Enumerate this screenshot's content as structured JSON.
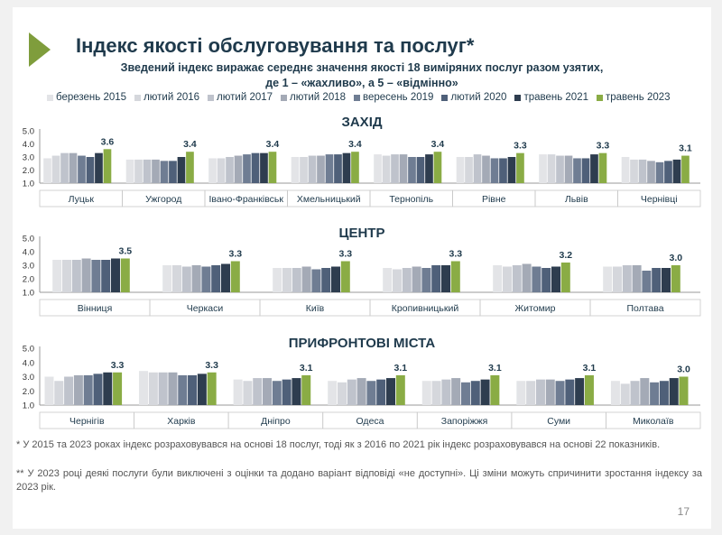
{
  "title": "Індекс якості обслуговування та послуг*",
  "subtitle_line1": "Зведений індекс виражає середнє значення якості 18 виміряних послуг разом узятих,",
  "subtitle_line2": "де 1 – «жахливо», а 5 – «відмінно»",
  "legend": [
    {
      "label": "березень 2015",
      "color": "#e3e4e7"
    },
    {
      "label": "лютий 2016",
      "color": "#d5d7dc"
    },
    {
      "label": "лютий 2017",
      "color": "#bfc3cc"
    },
    {
      "label": "лютий 2018",
      "color": "#a4aab6"
    },
    {
      "label": "вересень 2019",
      "color": "#6f7d93"
    },
    {
      "label": "лютий 2020",
      "color": "#4f6079"
    },
    {
      "label": "травень 2021",
      "color": "#2e3d4f"
    },
    {
      "label": "травень 2023",
      "color": "#8aac45"
    }
  ],
  "chart_data": [
    {
      "type": "bar",
      "title": "ЗАХІД",
      "ylim": [
        1.0,
        5.0
      ],
      "yticks": [
        "5.0",
        "4.0",
        "3.0",
        "2.0",
        "1.0"
      ],
      "categories": [
        "Луцьк",
        "Ужгород",
        "Івано-Франківськ",
        "Хмельницький",
        "Тернопіль",
        "Рівне",
        "Львів",
        "Чернівці"
      ],
      "series": [
        {
          "name": "березень 2015",
          "values": [
            2.9,
            2.8,
            2.9,
            3.0,
            3.2,
            3.0,
            3.2,
            3.0
          ]
        },
        {
          "name": "лютий 2016",
          "values": [
            3.1,
            2.8,
            2.9,
            3.0,
            3.1,
            3.0,
            3.2,
            2.8
          ]
        },
        {
          "name": "лютий 2017",
          "values": [
            3.3,
            2.8,
            3.0,
            3.1,
            3.2,
            3.2,
            3.1,
            2.8
          ]
        },
        {
          "name": "лютий 2018",
          "values": [
            3.3,
            2.8,
            3.1,
            3.1,
            3.2,
            3.1,
            3.1,
            2.7
          ]
        },
        {
          "name": "вересень 2019",
          "values": [
            3.1,
            2.7,
            3.2,
            3.2,
            3.0,
            2.9,
            2.9,
            2.6
          ]
        },
        {
          "name": "лютий 2020",
          "values": [
            3.0,
            2.7,
            3.3,
            3.2,
            3.0,
            2.9,
            2.9,
            2.7
          ]
        },
        {
          "name": "травень 2021",
          "values": [
            3.3,
            3.0,
            3.3,
            3.3,
            3.2,
            3.0,
            3.2,
            2.8
          ]
        },
        {
          "name": "травень 2023",
          "values": [
            3.6,
            3.4,
            3.4,
            3.4,
            3.4,
            3.3,
            3.3,
            3.1
          ]
        }
      ],
      "data_labels": [
        "3.6",
        "3.4",
        "3.4",
        "3.4",
        "3.4",
        "3.3",
        "3.3",
        "3.1"
      ]
    },
    {
      "type": "bar",
      "title": "ЦЕНТР",
      "ylim": [
        1.0,
        5.0
      ],
      "yticks": [
        "5.0",
        "4.0",
        "3.0",
        "2.0",
        "1.0"
      ],
      "categories": [
        "Вінниця",
        "Черкаси",
        "Київ",
        "Кропивницький",
        "Житомир",
        "Полтава"
      ],
      "series": [
        {
          "name": "березень 2015",
          "values": [
            3.4,
            3.0,
            2.8,
            2.8,
            3.0,
            2.9
          ]
        },
        {
          "name": "лютий 2016",
          "values": [
            3.4,
            3.0,
            2.8,
            2.7,
            2.9,
            2.9
          ]
        },
        {
          "name": "лютий 2017",
          "values": [
            3.4,
            2.9,
            2.8,
            2.8,
            3.0,
            3.0
          ]
        },
        {
          "name": "лютий 2018",
          "values": [
            3.5,
            3.0,
            2.9,
            2.9,
            3.1,
            3.0
          ]
        },
        {
          "name": "вересень 2019",
          "values": [
            3.4,
            2.9,
            2.7,
            2.8,
            2.9,
            2.6
          ]
        },
        {
          "name": "лютий 2020",
          "values": [
            3.4,
            3.0,
            2.8,
            3.0,
            2.8,
            2.8
          ]
        },
        {
          "name": "травень 2021",
          "values": [
            3.5,
            3.1,
            2.9,
            3.0,
            2.9,
            2.8
          ]
        },
        {
          "name": "травень 2023",
          "values": [
            3.5,
            3.3,
            3.3,
            3.3,
            3.2,
            3.0
          ]
        }
      ],
      "data_labels": [
        "3.5",
        "3.3",
        "3.3",
        "3.3",
        "3.2",
        "3.0"
      ]
    },
    {
      "type": "bar",
      "title": "ПРИФРОНТОВІ МІСТА",
      "ylim": [
        1.0,
        5.0
      ],
      "yticks": [
        "5.0",
        "4.0",
        "3.0",
        "2.0",
        "1.0"
      ],
      "categories": [
        "Чернігів",
        "Харків",
        "Дніпро",
        "Одеса",
        "Запоріжжя",
        "Суми",
        "Миколаїв"
      ],
      "series": [
        {
          "name": "березень 2015",
          "values": [
            3.0,
            3.4,
            2.8,
            2.7,
            2.7,
            2.7,
            2.7
          ]
        },
        {
          "name": "лютий 2016",
          "values": [
            2.7,
            3.3,
            2.7,
            2.6,
            2.7,
            2.7,
            2.5
          ]
        },
        {
          "name": "лютий 2017",
          "values": [
            3.0,
            3.3,
            2.9,
            2.8,
            2.8,
            2.8,
            2.7
          ]
        },
        {
          "name": "лютий 2018",
          "values": [
            3.1,
            3.3,
            2.9,
            2.9,
            2.9,
            2.8,
            2.9
          ]
        },
        {
          "name": "вересень 2019",
          "values": [
            3.1,
            3.1,
            2.7,
            2.7,
            2.6,
            2.7,
            2.6
          ]
        },
        {
          "name": "лютий 2020",
          "values": [
            3.2,
            3.1,
            2.8,
            2.8,
            2.7,
            2.8,
            2.7
          ]
        },
        {
          "name": "травень 2021",
          "values": [
            3.3,
            3.2,
            2.9,
            2.9,
            2.8,
            2.9,
            2.9
          ]
        },
        {
          "name": "травень 2023",
          "values": [
            3.3,
            3.3,
            3.1,
            3.1,
            3.1,
            3.1,
            3.0
          ]
        }
      ],
      "data_labels": [
        "3.3",
        "3.3",
        "3.1",
        "3.1",
        "3.1",
        "3.1",
        "3.0"
      ]
    }
  ],
  "footnote1": "* У 2015 та 2023 роках індекс розраховувався на основі 18 послуг, тоді як з 2016 по 2021 рік індекс розраховувався на основі 22 показників.",
  "footnote2": "** У 2023 році деякі послуги були виключені з оцінки та додано варіант відповіді «не доступні». Ці зміни можуть спричинити зростання індексу за 2023 рік.",
  "page_number": "17"
}
